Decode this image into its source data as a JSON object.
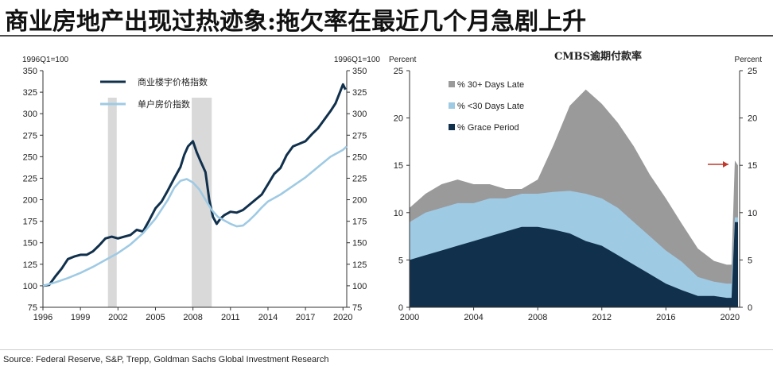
{
  "headline": "商业房地产出现过热迹象:拖欠率在最近几个月急剧上升",
  "source": "Source: Federal Reserve, S&P, Trepp, Goldman Sachs Global Investment Research",
  "colors": {
    "dark_navy": "#10304c",
    "light_blue": "#9fcae4",
    "gray": "#9a9a9a",
    "recession_shade": "#d9d9d9",
    "arrow": "#c0392b"
  },
  "chart_data": [
    {
      "type": "line",
      "yunit_left": "1996Q1=100",
      "yunit_right": "1996Q1=100",
      "ylim": [
        75,
        350
      ],
      "yticks": [
        "75",
        "100",
        "125",
        "150",
        "175",
        "200",
        "225",
        "250",
        "275",
        "300",
        "325",
        "350"
      ],
      "xlim": [
        1996,
        2020.3
      ],
      "xticks": [
        "1996",
        "1999",
        "2002",
        "2005",
        "2008",
        "2011",
        "2014",
        "2017",
        "2020"
      ],
      "recessions": [
        [
          2001.2,
          2001.9
        ],
        [
          2007.9,
          2009.5
        ]
      ],
      "series": [
        {
          "name": "商业楼宇价格指数",
          "color": "#10304c",
          "x": [
            1996,
            1996.5,
            1997,
            1997.5,
            1998,
            1998.5,
            1999,
            1999.5,
            2000,
            2000.5,
            2001,
            2001.5,
            2002,
            2002.5,
            2003,
            2003.5,
            2004,
            2004.5,
            2005,
            2005.5,
            2006,
            2006.5,
            2007,
            2007.3,
            2007.6,
            2008,
            2008.3,
            2008.6,
            2009,
            2009.3,
            2009.6,
            2009.9,
            2010.2,
            2010.5,
            2011,
            2011.5,
            2012,
            2012.5,
            2013,
            2013.5,
            2014,
            2014.5,
            2015,
            2015.5,
            2016,
            2016.5,
            2017,
            2017.5,
            2018,
            2018.5,
            2019,
            2019.4,
            2019.7,
            2020,
            2020.2
          ],
          "values": [
            100,
            101,
            111,
            120,
            131,
            134,
            136,
            136,
            140,
            147,
            155,
            157,
            155,
            157,
            159,
            165,
            163,
            176,
            190,
            198,
            211,
            225,
            238,
            252,
            262,
            268,
            255,
            245,
            232,
            200,
            180,
            172,
            178,
            182,
            186,
            185,
            188,
            194,
            200,
            206,
            218,
            230,
            237,
            252,
            262,
            265,
            268,
            276,
            283,
            293,
            303,
            312,
            323,
            334,
            328
          ]
        },
        {
          "name": "单户房价指数",
          "color": "#9fcae4",
          "x": [
            1996,
            1997,
            1998,
            1999,
            2000,
            2001,
            2002,
            2003,
            2004,
            2005,
            2006,
            2006.5,
            2007,
            2007.5,
            2008,
            2008.5,
            2009,
            2009.5,
            2010,
            2010.5,
            2011,
            2011.5,
            2012,
            2012.5,
            2013,
            2013.5,
            2014,
            2015,
            2016,
            2017,
            2018,
            2019,
            2020,
            2020.3
          ],
          "values": [
            100,
            104,
            109,
            115,
            122,
            130,
            138,
            148,
            161,
            178,
            200,
            214,
            222,
            224,
            220,
            212,
            200,
            188,
            180,
            176,
            172,
            169,
            170,
            176,
            183,
            191,
            198,
            206,
            216,
            226,
            238,
            250,
            258,
            262
          ]
        }
      ]
    },
    {
      "type": "area",
      "title": "CMBS逾期付款率",
      "yunit_left": "Percent",
      "yunit_right": "Percent",
      "ylim": [
        0,
        25
      ],
      "yticks": [
        "0",
        "5",
        "10",
        "15",
        "20",
        "25"
      ],
      "xlim": [
        2000,
        2020.6
      ],
      "xticks": [
        "2000",
        "2004",
        "2008",
        "2012",
        "2016",
        "2020"
      ],
      "stacked": true,
      "series": [
        {
          "name": "% Grace Period",
          "color": "#10304c",
          "x": [
            2000,
            2001,
            2002,
            2003,
            2004,
            2005,
            2006,
            2007,
            2008,
            2009,
            2010,
            2011,
            2012,
            2013,
            2014,
            2015,
            2016,
            2017,
            2018,
            2019,
            2019.8,
            2020.1,
            2020.3,
            2020.5
          ],
          "values": [
            5.0,
            5.5,
            6.0,
            6.5,
            7.0,
            7.5,
            8.0,
            8.5,
            8.5,
            8.2,
            7.8,
            7.0,
            6.5,
            5.5,
            4.5,
            3.5,
            2.5,
            1.8,
            1.2,
            1.2,
            1.0,
            1.0,
            9.0,
            9.0
          ]
        },
        {
          "name": "% <30 Days Late",
          "color": "#9fcae4",
          "x": [
            2000,
            2001,
            2002,
            2003,
            2004,
            2005,
            2006,
            2007,
            2008,
            2009,
            2010,
            2011,
            2012,
            2013,
            2014,
            2015,
            2016,
            2017,
            2018,
            2019,
            2019.8,
            2020.1,
            2020.3,
            2020.5
          ],
          "values": [
            4.0,
            4.5,
            4.5,
            4.5,
            4.0,
            4.0,
            3.5,
            3.5,
            3.5,
            4.0,
            4.5,
            5.0,
            5.0,
            5.0,
            4.5,
            4.0,
            3.5,
            3.0,
            2.0,
            1.5,
            1.5,
            1.5,
            0.5,
            0.5
          ]
        },
        {
          "name": "% 30+ Days Late",
          "color": "#9a9a9a",
          "x": [
            2000,
            2001,
            2002,
            2003,
            2004,
            2005,
            2006,
            2007,
            2008,
            2009,
            2010,
            2011,
            2012,
            2013,
            2014,
            2015,
            2016,
            2017,
            2018,
            2019,
            2019.8,
            2020.1,
            2020.3,
            2020.5
          ],
          "values": [
            1.5,
            2.0,
            2.5,
            2.5,
            2.0,
            1.5,
            1.0,
            0.5,
            1.5,
            5.0,
            9.0,
            11.0,
            10.0,
            9.0,
            8.0,
            6.5,
            5.5,
            4.0,
            3.0,
            2.2,
            2.0,
            2.0,
            6.0,
            5.5
          ]
        }
      ]
    }
  ]
}
